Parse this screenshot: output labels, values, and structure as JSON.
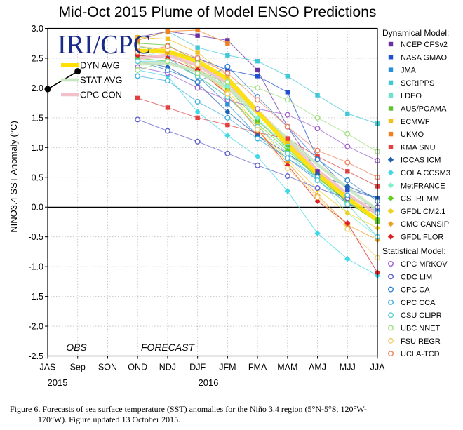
{
  "chart_data": {
    "type": "line",
    "title": "Mid-Oct 2015 Plume of Model ENSO Predictions",
    "ylabel": "NINO3.4 SST Anomaly (°C)",
    "ylim": [
      -2.5,
      3.0
    ],
    "yticks": [
      "3.0",
      "2.5",
      "2.0",
      "1.5",
      "1.0",
      "0.5",
      "0.0",
      "-0.5",
      "-1.0",
      "-1.5",
      "-2.0",
      "-2.5"
    ],
    "categories": [
      "JAS",
      "Sep",
      "SON",
      "OND",
      "NDJ",
      "DJF",
      "JFM",
      "FMA",
      "MAM",
      "AMJ",
      "MJJ",
      "JJA"
    ],
    "year_labels": [
      {
        "text": "2015",
        "at": "JAS"
      },
      {
        "text": "2016",
        "at": "DJF"
      }
    ],
    "region_labels": {
      "obs": "OBS",
      "forecast": "FORECAST"
    },
    "logo": "IRI/CPC",
    "grid": true,
    "observed": {
      "points": [
        [
          0,
          1.98
        ],
        [
          1,
          2.28
        ]
      ]
    },
    "averages": [
      {
        "name": "DYN AVG",
        "color": "#ffe000",
        "values": [
          null,
          null,
          null,
          2.62,
          2.62,
          2.45,
          2.15,
          1.6,
          1.05,
          0.55,
          0.15,
          -0.22
        ]
      },
      {
        "name": "STAT AVG",
        "color": "#c8e6c0",
        "values": [
          null,
          null,
          null,
          2.4,
          2.42,
          2.28,
          2.0,
          1.58,
          1.15,
          0.72,
          0.32,
          -0.05
        ]
      },
      {
        "name": "CPC CON",
        "color": "#f2c0c8",
        "values": [
          null,
          null,
          null,
          2.5,
          2.55,
          2.38,
          2.08,
          1.62,
          1.12,
          0.62,
          0.22,
          -0.12
        ]
      }
    ],
    "dynamical_title": "Dynamical Model:",
    "statistical_title": "Statistical Model:",
    "series": [
      {
        "name": "NCEP CFSv2",
        "group": "dynamical",
        "marker": "square",
        "color": "#6a2fa0",
        "values": [
          null,
          null,
          null,
          2.85,
          2.95,
          2.88,
          2.8,
          2.3,
          1.35,
          0.6,
          0.05,
          -0.1
        ]
      },
      {
        "name": "NASA GMAO",
        "group": "dynamical",
        "marker": "square",
        "color": "#2050d0",
        "values": [
          null,
          null,
          null,
          2.7,
          2.6,
          2.5,
          2.3,
          2.2,
          1.93,
          0.82,
          0.3,
          0.15
        ]
      },
      {
        "name": "JMA",
        "group": "dynamical",
        "marker": "square",
        "color": "#2a8fd8",
        "values": [
          null,
          null,
          null,
          2.55,
          2.5,
          2.2,
          1.73,
          1.2,
          0.82,
          0.45,
          0.05,
          -0.05
        ]
      },
      {
        "name": "SCRIPPS",
        "group": "dynamical",
        "marker": "square",
        "color": "#40c8d8",
        "values": [
          null,
          null,
          null,
          2.8,
          2.95,
          2.68,
          2.55,
          2.45,
          2.2,
          1.88,
          1.57,
          1.4
        ]
      },
      {
        "name": "LDEO",
        "group": "dynamical",
        "marker": "square",
        "color": "#70e0d0",
        "values": [
          null,
          null,
          null,
          2.7,
          2.6,
          2.3,
          2.08,
          1.45,
          1.05,
          0.45,
          0.1,
          -0.25
        ]
      },
      {
        "name": "AUS/POAMA",
        "group": "dynamical",
        "marker": "square",
        "color": "#60c030",
        "values": [
          null,
          null,
          null,
          2.75,
          2.72,
          2.45,
          2.0,
          1.45,
          1.0,
          0.5,
          0.08,
          -0.25
        ]
      },
      {
        "name": "ECMWF",
        "group": "dynamical",
        "marker": "square",
        "color": "#f0c020",
        "values": [
          null,
          null,
          null,
          2.85,
          2.82,
          2.6,
          2.2,
          1.65,
          1.1,
          null,
          null,
          null
        ]
      },
      {
        "name": "UKMO",
        "group": "dynamical",
        "marker": "square",
        "color": "#f08020",
        "values": [
          null,
          null,
          null,
          2.8,
          2.95,
          2.97,
          2.75,
          null,
          null,
          null,
          null,
          null
        ]
      },
      {
        "name": "KMA SNU",
        "group": "dynamical",
        "marker": "square",
        "color": "#e04040",
        "values": [
          null,
          null,
          null,
          1.83,
          1.67,
          1.5,
          1.38,
          1.25,
          1.15,
          0.85,
          0.6,
          0.35
        ]
      },
      {
        "name": "IOCAS ICM",
        "group": "dynamical",
        "marker": "diamond",
        "color": "#2060b0",
        "values": [
          null,
          null,
          null,
          2.45,
          2.35,
          2.08,
          1.6,
          1.2,
          0.9,
          0.55,
          0.35,
          0.15
        ]
      },
      {
        "name": "COLA CCSM3",
        "group": "dynamical",
        "marker": "diamond",
        "color": "#40d8e8",
        "values": [
          null,
          null,
          null,
          2.3,
          2.2,
          1.6,
          1.2,
          0.85,
          0.27,
          -0.44,
          -0.87,
          -1.15
        ]
      },
      {
        "name": "MetFRANCE",
        "group": "dynamical",
        "marker": "diamond",
        "color": "#80f0d0",
        "values": [
          null,
          null,
          null,
          2.5,
          2.65,
          2.42,
          2.02,
          1.5,
          0.97,
          0.5,
          -0.1,
          -0.5
        ]
      },
      {
        "name": "CS-IRI-MM",
        "group": "dynamical",
        "marker": "diamond",
        "color": "#60d020",
        "values": [
          null,
          null,
          null,
          2.5,
          2.45,
          2.2,
          1.85,
          1.4,
          0.95,
          0.5,
          0.1,
          -0.2
        ]
      },
      {
        "name": "GFDL CM2.1",
        "group": "dynamical",
        "marker": "diamond",
        "color": "#f0d020",
        "values": [
          null,
          null,
          null,
          2.6,
          2.58,
          2.3,
          1.95,
          1.38,
          0.8,
          0.3,
          -0.1,
          -0.35
        ]
      },
      {
        "name": "CMC CANSIP",
        "group": "dynamical",
        "marker": "diamond",
        "color": "#f0a020",
        "values": [
          null,
          null,
          null,
          2.65,
          2.6,
          2.35,
          1.9,
          1.3,
          0.75,
          0.2,
          -0.3,
          -0.55
        ]
      },
      {
        "name": "GFDL FLOR",
        "group": "dynamical",
        "marker": "diamond",
        "color": "#e02020",
        "values": [
          null,
          null,
          null,
          2.55,
          2.5,
          2.3,
          1.9,
          1.3,
          0.7,
          0.1,
          -0.27,
          -1.1
        ]
      },
      {
        "name": "CPC MRKOV",
        "group": "statistical",
        "marker": "circle",
        "color": "#a060d0",
        "values": [
          null,
          null,
          null,
          2.35,
          2.25,
          2.0,
          1.8,
          1.65,
          1.55,
          1.32,
          1.02,
          0.78
        ]
      },
      {
        "name": "CDC LIM",
        "group": "statistical",
        "marker": "circle",
        "color": "#6060d0",
        "values": [
          null,
          null,
          null,
          1.47,
          1.28,
          1.1,
          0.9,
          0.7,
          0.52,
          0.32,
          0.15,
          0.0
        ]
      },
      {
        "name": "CPC CA",
        "group": "statistical",
        "marker": "circle",
        "color": "#3080d0",
        "values": [
          null,
          null,
          null,
          2.45,
          2.3,
          2.1,
          2.36,
          1.85,
          1.35,
          0.8,
          0.45,
          0.1
        ]
      },
      {
        "name": "CPC CCA",
        "group": "statistical",
        "marker": "circle",
        "color": "#40b0e0",
        "values": [
          null,
          null,
          null,
          2.2,
          2.12,
          1.77,
          1.5,
          1.15,
          0.82,
          0.5,
          0.2,
          -0.1
        ]
      },
      {
        "name": "CSU CLIPR",
        "group": "statistical",
        "marker": "circle",
        "color": "#60d0d0",
        "values": [
          null,
          null,
          null,
          2.45,
          2.45,
          2.2,
          1.85,
          1.35,
          0.9,
          0.45,
          0.05,
          -0.5
        ]
      },
      {
        "name": "UBC NNET",
        "group": "statistical",
        "marker": "circle",
        "color": "#a0e080",
        "values": [
          null,
          null,
          null,
          2.3,
          2.45,
          2.25,
          2.1,
          2.0,
          1.8,
          1.5,
          1.23,
          0.93
        ]
      },
      {
        "name": "FSU REGR",
        "group": "statistical",
        "marker": "circle",
        "color": "#f0d070",
        "values": [
          null,
          null,
          null,
          2.7,
          2.65,
          2.4,
          1.9,
          1.3,
          0.65,
          0.17,
          -0.37,
          -0.85
        ]
      },
      {
        "name": "UCLA-TCD",
        "group": "statistical",
        "marker": "circle",
        "color": "#f08060",
        "values": [
          null,
          null,
          null,
          2.6,
          2.7,
          2.5,
          2.25,
          1.8,
          1.35,
          0.95,
          0.75,
          0.5
        ]
      }
    ]
  },
  "caption": {
    "line1": "Figure 6. Forecasts of sea surface temperature (SST) anomalies for the Niño 3.4 region (5°N-5°S, 120°W-",
    "line2": "170°W). Figure updated 13 October 2015."
  }
}
